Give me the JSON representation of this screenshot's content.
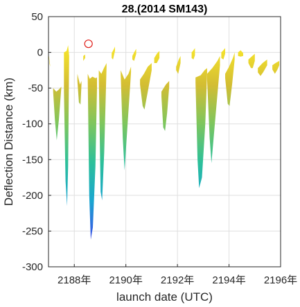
{
  "chart_data": {
    "type": "area",
    "title": "28.(2014 SM143)",
    "xlabel": "launch date (UTC)",
    "ylabel": "Deflection Distance (km)",
    "xlim": [
      2187.0,
      2196.0
    ],
    "ylim": [
      -300,
      50
    ],
    "xticks": [
      2188,
      2190,
      2192,
      2194,
      2196
    ],
    "xtick_labels": [
      "2188年",
      "2190年",
      "2192年",
      "2194年",
      "2196年"
    ],
    "yticks": [
      50,
      0,
      -50,
      -100,
      -150,
      -200,
      -250,
      -300
    ],
    "ytick_labels": [
      "50",
      "0",
      "-50",
      "-100",
      "-150",
      "-200",
      "-250",
      "-300"
    ],
    "grid": true,
    "colormap": [
      "#3c4ee8",
      "#1aa6d0",
      "#2cc09a",
      "#7dc65e",
      "#d3bd33",
      "#f7e52b"
    ],
    "series": [
      {
        "start": [
          2187.0,
          -1
        ],
        "top": [
          [
            2187.0,
            -1
          ],
          [
            2187.04,
            -12
          ],
          [
            2187.07,
            -20
          ]
        ],
        "bottom": [
          [
            2187.0,
            -3
          ],
          [
            2187.04,
            -16
          ],
          [
            2187.07,
            -20
          ]
        ]
      },
      {
        "start": [
          2187.18,
          -50
        ],
        "top": [
          [
            2187.18,
            -50
          ],
          [
            2187.3,
            -55
          ],
          [
            2187.4,
            -52
          ],
          [
            2187.5,
            -48
          ]
        ],
        "bottom": [
          [
            2187.18,
            -55
          ],
          [
            2187.25,
            -95
          ],
          [
            2187.32,
            -123
          ],
          [
            2187.4,
            -95
          ],
          [
            2187.5,
            -48
          ]
        ]
      },
      {
        "start": [
          2187.6,
          0
        ],
        "top": [
          [
            2187.6,
            0
          ],
          [
            2187.7,
            2
          ],
          [
            2187.76,
            10
          ]
        ],
        "bottom": [
          [
            2187.6,
            -55
          ],
          [
            2187.66,
            -180
          ],
          [
            2187.72,
            -215
          ],
          [
            2187.76,
            -160
          ],
          [
            2187.8,
            -5
          ]
        ]
      },
      {
        "start": [
          2188.12,
          -30
        ],
        "top": [
          [
            2188.12,
            -30
          ],
          [
            2188.22,
            -45
          ],
          [
            2188.28,
            -40
          ]
        ],
        "bottom": [
          [
            2188.12,
            -40
          ],
          [
            2188.18,
            -70
          ],
          [
            2188.24,
            -73
          ],
          [
            2188.28,
            -45
          ]
        ]
      },
      {
        "start": [
          2188.35,
          -5
        ],
        "top": [
          [
            2188.35,
            -5
          ],
          [
            2188.42,
            -3
          ]
        ],
        "bottom": [
          [
            2188.35,
            -12
          ],
          [
            2188.42,
            -8
          ]
        ]
      },
      {
        "start": [
          2188.52,
          -30
        ],
        "top": [
          [
            2188.52,
            -30
          ],
          [
            2188.6,
            -37
          ],
          [
            2188.7,
            -34
          ],
          [
            2188.82,
            -36
          ],
          [
            2188.88,
            -35
          ]
        ],
        "bottom": [
          [
            2188.52,
            -35
          ],
          [
            2188.58,
            -200
          ],
          [
            2188.64,
            -262
          ],
          [
            2188.72,
            -245
          ],
          [
            2188.82,
            -160
          ],
          [
            2188.88,
            -50
          ]
        ]
      },
      {
        "start": [
          2188.95,
          -25
        ],
        "top": [
          [
            2188.95,
            -25
          ],
          [
            2189.05,
            -30
          ],
          [
            2189.15,
            -22
          ],
          [
            2189.25,
            -15
          ]
        ],
        "bottom": [
          [
            2188.95,
            -32
          ],
          [
            2189.02,
            -195
          ],
          [
            2189.08,
            -207
          ],
          [
            2189.16,
            -140
          ],
          [
            2189.25,
            -20
          ]
        ]
      },
      {
        "start": [
          2189.45,
          -1
        ],
        "top": [
          [
            2189.45,
            -1
          ],
          [
            2189.54,
            5
          ],
          [
            2189.58,
            8
          ]
        ],
        "bottom": [
          [
            2189.45,
            -8
          ],
          [
            2189.5,
            -10
          ],
          [
            2189.58,
            2
          ]
        ]
      },
      {
        "start": [
          2189.8,
          -25
        ],
        "top": [
          [
            2189.8,
            -25
          ],
          [
            2189.95,
            -38
          ],
          [
            2190.1,
            -30
          ],
          [
            2190.2,
            -20
          ]
        ],
        "bottom": [
          [
            2189.8,
            -30
          ],
          [
            2189.88,
            -120
          ],
          [
            2189.95,
            -165
          ],
          [
            2190.05,
            -110
          ],
          [
            2190.2,
            -28
          ]
        ]
      },
      {
        "start": [
          2190.25,
          -5
        ],
        "top": [
          [
            2190.25,
            -5
          ],
          [
            2190.32,
            0
          ],
          [
            2190.4,
            5
          ]
        ],
        "bottom": [
          [
            2190.25,
            -10
          ],
          [
            2190.32,
            -12
          ],
          [
            2190.4,
            -2
          ]
        ]
      },
      {
        "start": [
          2190.55,
          -38
        ],
        "top": [
          [
            2190.55,
            -38
          ],
          [
            2190.7,
            -30
          ],
          [
            2190.85,
            -20
          ],
          [
            2191.0,
            -15
          ]
        ],
        "bottom": [
          [
            2190.55,
            -45
          ],
          [
            2190.65,
            -75
          ],
          [
            2190.72,
            -80
          ],
          [
            2190.85,
            -55
          ],
          [
            2191.0,
            -25
          ]
        ]
      },
      {
        "start": [
          2191.1,
          -8
        ],
        "top": [
          [
            2191.1,
            -8
          ],
          [
            2191.2,
            -2
          ],
          [
            2191.3,
            2
          ]
        ],
        "bottom": [
          [
            2191.1,
            -15
          ],
          [
            2191.2,
            -15
          ],
          [
            2191.3,
            -8
          ]
        ]
      },
      {
        "start": [
          2191.38,
          -55
        ],
        "top": [
          [
            2191.38,
            -55
          ],
          [
            2191.55,
            -45
          ],
          [
            2191.68,
            -40
          ]
        ],
        "bottom": [
          [
            2191.38,
            -62
          ],
          [
            2191.45,
            -105
          ],
          [
            2191.52,
            -110
          ],
          [
            2191.6,
            -85
          ],
          [
            2191.68,
            -48
          ]
        ]
      },
      {
        "start": [
          2191.95,
          -20
        ],
        "top": [
          [
            2191.95,
            -20
          ],
          [
            2192.05,
            -10
          ],
          [
            2192.12,
            -5
          ]
        ],
        "bottom": [
          [
            2191.95,
            -25
          ],
          [
            2192.03,
            -30
          ],
          [
            2192.12,
            -15
          ]
        ]
      },
      {
        "start": [
          2192.55,
          0
        ],
        "top": [
          [
            2192.55,
            0
          ],
          [
            2192.62,
            3
          ],
          [
            2192.68,
            6
          ]
        ],
        "bottom": [
          [
            2192.55,
            -8
          ],
          [
            2192.62,
            -10
          ],
          [
            2192.68,
            -4
          ]
        ]
      },
      {
        "start": [
          2192.7,
          -35
        ],
        "top": [
          [
            2192.7,
            -35
          ],
          [
            2192.9,
            -32
          ],
          [
            2193.05,
            -25
          ],
          [
            2193.15,
            -22
          ]
        ],
        "bottom": [
          [
            2192.7,
            -42
          ],
          [
            2192.78,
            -150
          ],
          [
            2192.84,
            -190
          ],
          [
            2192.95,
            -175
          ],
          [
            2193.08,
            -100
          ],
          [
            2193.15,
            -30
          ]
        ]
      },
      {
        "start": [
          2193.15,
          -30
        ],
        "top": [
          [
            2193.15,
            -30
          ],
          [
            2193.35,
            -22
          ],
          [
            2193.55,
            -12
          ],
          [
            2193.65,
            -5
          ]
        ],
        "bottom": [
          [
            2193.15,
            -38
          ],
          [
            2193.25,
            -120
          ],
          [
            2193.32,
            -155
          ],
          [
            2193.45,
            -100
          ],
          [
            2193.65,
            -18
          ]
        ]
      },
      {
        "start": [
          2193.7,
          0
        ],
        "top": [
          [
            2193.7,
            0
          ],
          [
            2193.78,
            3
          ],
          [
            2193.85,
            6
          ]
        ],
        "bottom": [
          [
            2193.7,
            -8
          ],
          [
            2193.78,
            -10
          ],
          [
            2193.85,
            -2
          ]
        ]
      },
      {
        "start": [
          2193.85,
          -30
        ],
        "top": [
          [
            2193.85,
            -30
          ],
          [
            2194.0,
            -20
          ],
          [
            2194.15,
            -8
          ],
          [
            2194.22,
            0
          ]
        ],
        "bottom": [
          [
            2193.85,
            -36
          ],
          [
            2193.95,
            -72
          ],
          [
            2194.02,
            -75
          ],
          [
            2194.12,
            -45
          ],
          [
            2194.22,
            -10
          ]
        ]
      },
      {
        "start": [
          2194.35,
          0
        ],
        "top": [
          [
            2194.35,
            0
          ],
          [
            2194.45,
            3
          ],
          [
            2194.55,
            -1
          ]
        ],
        "bottom": [
          [
            2194.35,
            -5
          ],
          [
            2194.45,
            -6
          ],
          [
            2194.55,
            -5
          ]
        ]
      },
      {
        "start": [
          2194.75,
          -10
        ],
        "top": [
          [
            2194.75,
            -10
          ],
          [
            2194.9,
            -5
          ],
          [
            2195.0,
            -2
          ]
        ],
        "bottom": [
          [
            2194.75,
            -15
          ],
          [
            2194.85,
            -22
          ],
          [
            2194.92,
            -22
          ],
          [
            2195.0,
            -12
          ]
        ]
      },
      {
        "start": [
          2195.12,
          -22
        ],
        "top": [
          [
            2195.12,
            -22
          ],
          [
            2195.3,
            -15
          ],
          [
            2195.48,
            -10
          ]
        ],
        "bottom": [
          [
            2195.12,
            -28
          ],
          [
            2195.22,
            -33
          ],
          [
            2195.32,
            -28
          ],
          [
            2195.48,
            -18
          ]
        ]
      },
      {
        "start": [
          2195.68,
          -18
        ],
        "top": [
          [
            2195.68,
            -18
          ],
          [
            2195.8,
            -15
          ],
          [
            2195.95,
            -12
          ]
        ],
        "bottom": [
          [
            2195.68,
            -24
          ],
          [
            2195.78,
            -30
          ],
          [
            2195.88,
            -24
          ],
          [
            2195.95,
            -18
          ]
        ]
      }
    ],
    "marker": {
      "x": 2188.55,
      "y": 12,
      "color": "#e0201b",
      "shape": "circle"
    }
  }
}
